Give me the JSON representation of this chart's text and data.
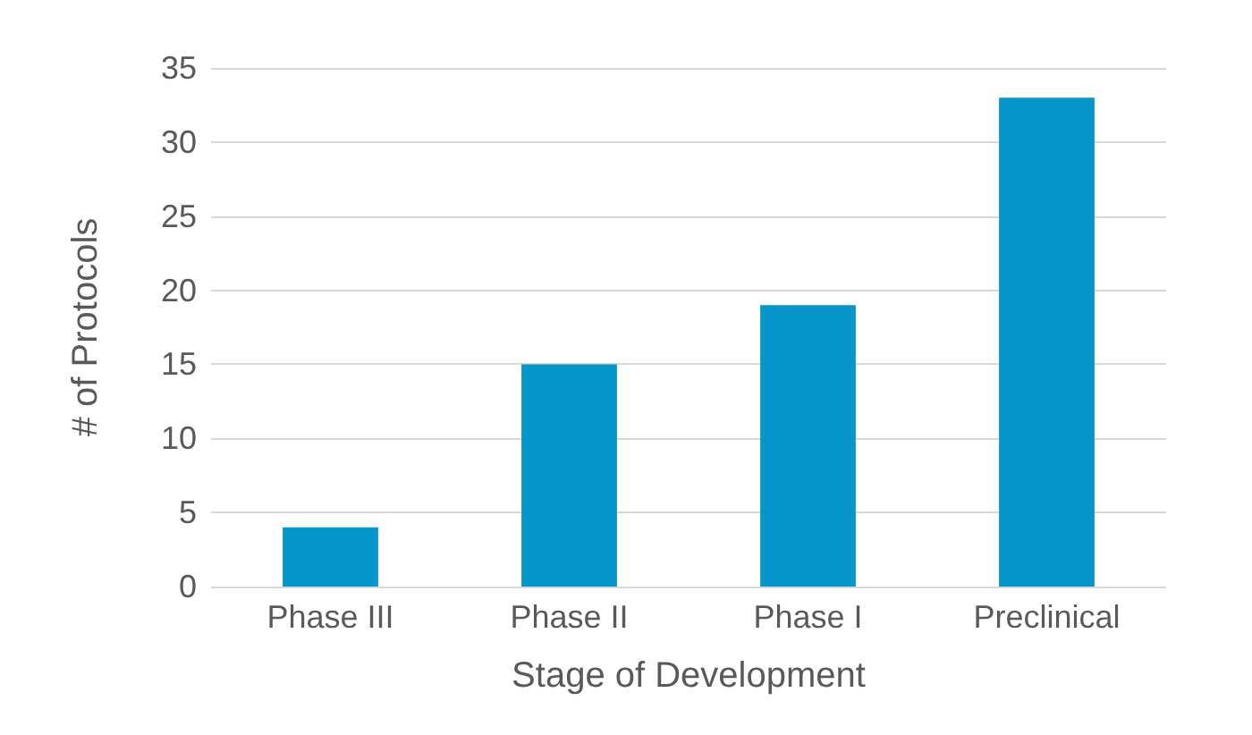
{
  "chart_data": {
    "type": "bar",
    "xlabel": "Stage of Development",
    "ylabel": "# of Protocols",
    "categories": [
      "Phase III",
      "Phase II",
      "Phase I",
      "Preclinical"
    ],
    "values": [
      4,
      15,
      19,
      33
    ],
    "color": "#0796c9",
    "ylim": [
      0,
      35
    ],
    "yticks": [
      0,
      5,
      10,
      15,
      20,
      25,
      30,
      35
    ],
    "grid": "y"
  }
}
